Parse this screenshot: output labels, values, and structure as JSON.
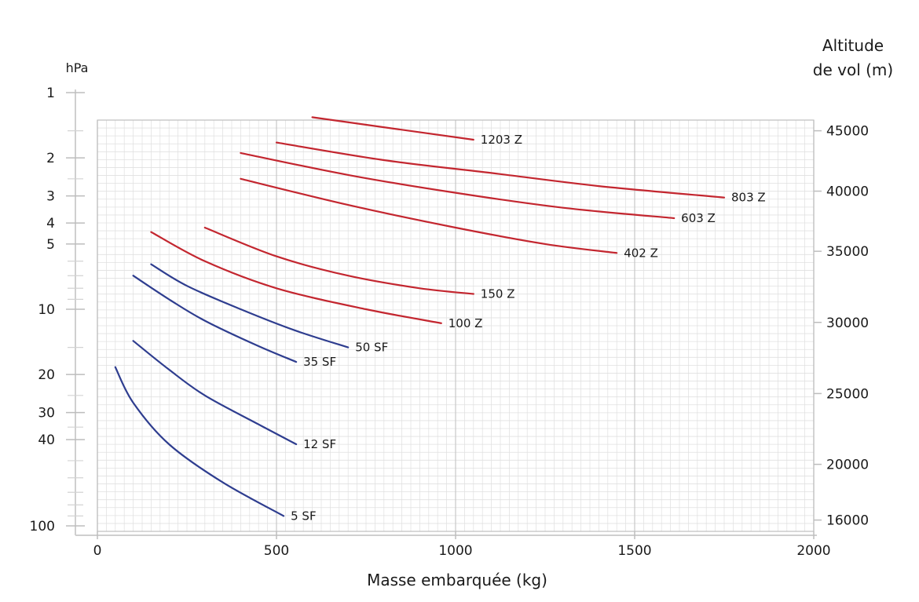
{
  "chart_data": {
    "type": "line",
    "xlabel": "Masse embarquée (kg)",
    "ylabel": "hPa",
    "y2label": [
      "Altitude",
      "de vol (m)"
    ],
    "xlim": [
      0,
      2000
    ],
    "x_ticks": [
      0,
      500,
      1000,
      1500,
      2000
    ],
    "x_tick_labels": [
      "0",
      "500",
      "1000",
      "1500",
      "2000"
    ],
    "y_scale": "log",
    "y_reversed": true,
    "ylim_hpa": [
      1,
      100
    ],
    "y_ticks": [
      1,
      2,
      3,
      4,
      5,
      10,
      20,
      30,
      40,
      100
    ],
    "y_tick_labels": [
      "1",
      "2",
      "3",
      "4",
      "5",
      "10",
      "20",
      "30",
      "40",
      "100"
    ],
    "y_minor_ticks": [
      1.5,
      2.5,
      6,
      7,
      8,
      9,
      15,
      25,
      35,
      50,
      60,
      70,
      80,
      90
    ],
    "y2_ticks": [
      45000,
      40000,
      35000,
      30000,
      25000,
      20000,
      16000
    ],
    "y2_tick_labels": [
      "45000",
      "40000",
      "35000",
      "30000",
      "25000",
      "20000",
      "16000"
    ],
    "y2_tick_hpa": [
      1.5,
      2.85,
      5.4,
      11.5,
      24.5,
      52,
      94
    ],
    "grid": true,
    "legend": "none",
    "series": [
      {
        "name": "1203 Z",
        "color": "#c3262f",
        "x": [
          600,
          1050
        ],
        "y": [
          1.3,
          1.65
        ]
      },
      {
        "name": "803 Z",
        "color": "#c3262f",
        "x": [
          500,
          800,
          1100,
          1400,
          1750
        ],
        "y": [
          1.7,
          2.05,
          2.35,
          2.7,
          3.05
        ]
      },
      {
        "name": "603 Z",
        "color": "#c3262f",
        "x": [
          400,
          700,
          1000,
          1300,
          1610
        ],
        "y": [
          1.9,
          2.4,
          2.9,
          3.4,
          3.8
        ]
      },
      {
        "name": "402 Z",
        "color": "#c3262f",
        "x": [
          400,
          700,
          1000,
          1250,
          1450
        ],
        "y": [
          2.5,
          3.3,
          4.2,
          5.0,
          5.5
        ]
      },
      {
        "name": "150 Z",
        "color": "#c3262f",
        "x": [
          300,
          500,
          700,
          900,
          1050
        ],
        "y": [
          4.2,
          5.7,
          7.0,
          8.0,
          8.5
        ]
      },
      {
        "name": "100 Z",
        "color": "#c3262f",
        "x": [
          150,
          300,
          500,
          750,
          960
        ],
        "y": [
          4.4,
          6.0,
          8.0,
          10.0,
          11.6
        ]
      },
      {
        "name": "50 SF",
        "color": "#2e3d8f",
        "x": [
          150,
          250,
          400,
          550,
          700
        ],
        "y": [
          6.2,
          7.8,
          10.0,
          12.5,
          15.0
        ]
      },
      {
        "name": "35 SF",
        "color": "#2e3d8f",
        "x": [
          100,
          200,
          300,
          450,
          555
        ],
        "y": [
          7.0,
          9.0,
          11.3,
          14.8,
          17.5
        ]
      },
      {
        "name": "12 SF",
        "color": "#2e3d8f",
        "x": [
          100,
          200,
          300,
          450,
          555
        ],
        "y": [
          14.0,
          19.0,
          25.0,
          34.0,
          42.0
        ]
      },
      {
        "name": "5 SF",
        "color": "#2e3d8f",
        "x": [
          50,
          100,
          200,
          350,
          520
        ],
        "y": [
          18.5,
          27.0,
          42.0,
          63.0,
          90.0
        ]
      }
    ]
  }
}
